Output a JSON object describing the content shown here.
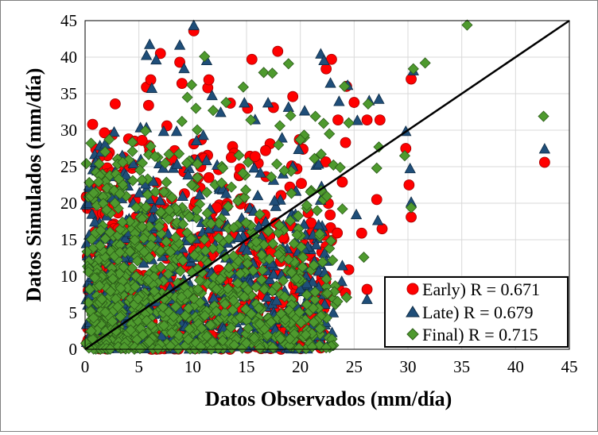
{
  "chart_data": {
    "type": "scatter",
    "title": "",
    "xlabel": "Datos Observados (mm/día)",
    "ylabel": "Datos Simulados (mm/día)",
    "xlim": [
      0,
      45
    ],
    "ylim": [
      0,
      45
    ],
    "x_ticks": [
      "0",
      "5",
      "10",
      "15",
      "20",
      "25",
      "30",
      "35",
      "40",
      "45"
    ],
    "y_ticks": [
      "0",
      "5",
      "10",
      "15",
      "20",
      "25",
      "30",
      "35",
      "40",
      "45"
    ],
    "grid": true,
    "legend_position": "bottom-right",
    "reference_line": {
      "label": "1:1",
      "from": [
        0,
        0
      ],
      "to": [
        45,
        45
      ],
      "color": "#000000"
    },
    "series": [
      {
        "name": "Early) R = 0.671",
        "marker": "circle",
        "color": "#ff0000",
        "points": [
          [
            0.2,
            19.3
          ],
          [
            0.5,
            19.6
          ],
          [
            1.0,
            27.4
          ],
          [
            1.1,
            22.1
          ],
          [
            2.0,
            24.0
          ],
          [
            2.5,
            24.2
          ],
          [
            2.7,
            21.7
          ],
          [
            2.8,
            33.6
          ],
          [
            3.4,
            22.5
          ],
          [
            3.6,
            25.7
          ],
          [
            4.6,
            28.5
          ],
          [
            5.3,
            28.6
          ],
          [
            5.7,
            35.9
          ],
          [
            5.9,
            33.4
          ],
          [
            6.1,
            36.9
          ],
          [
            7.0,
            40.5
          ],
          [
            7.6,
            30.6
          ],
          [
            8.1,
            26.0
          ],
          [
            8.8,
            39.3
          ],
          [
            9.0,
            36.4
          ],
          [
            10.1,
            43.6
          ],
          [
            10.8,
            28.7
          ],
          [
            11.4,
            35.8
          ],
          [
            11.5,
            36.9
          ],
          [
            13.5,
            33.7
          ],
          [
            15.1,
            33.0
          ],
          [
            15.5,
            39.7
          ],
          [
            17.5,
            33.1
          ],
          [
            17.9,
            40.8
          ],
          [
            19.3,
            34.6
          ],
          [
            22.4,
            38.4
          ],
          [
            22.9,
            39.7
          ],
          [
            23.5,
            31.4
          ],
          [
            23.9,
            22.9
          ],
          [
            24.2,
            28.3
          ],
          [
            24.3,
            36.0
          ],
          [
            25.0,
            33.8
          ],
          [
            26.2,
            31.4
          ],
          [
            27.4,
            31.4
          ],
          [
            29.8,
            27.5
          ],
          [
            30.1,
            22.5
          ],
          [
            30.3,
            18.1
          ],
          [
            30.3,
            37.0
          ],
          [
            42.7,
            25.6
          ],
          [
            25.7,
            15.9
          ],
          [
            27.6,
            16.5
          ],
          [
            27.1,
            20.5
          ],
          [
            24.5,
            10.9
          ],
          [
            26.2,
            8.2
          ],
          [
            24.2,
            7.7
          ],
          [
            22.0,
            13.3
          ],
          [
            21.0,
            17.3
          ],
          [
            20.1,
            22.7
          ],
          [
            19.2,
            25.1
          ],
          [
            18.4,
            15.3
          ],
          [
            16.7,
            18.4
          ],
          [
            15.8,
            26.4
          ],
          [
            14.9,
            12.1
          ],
          [
            13.2,
            19.6
          ],
          [
            12.4,
            24.6
          ]
        ]
      },
      {
        "name": "Late) R = 0.679",
        "marker": "triangle",
        "color": "#1f4e79",
        "points": [
          [
            0.3,
            11.9
          ],
          [
            0.9,
            17.4
          ],
          [
            1.0,
            25.6
          ],
          [
            2.5,
            20.7
          ],
          [
            2.7,
            29.7
          ],
          [
            3.8,
            23.8
          ],
          [
            5.7,
            40.2
          ],
          [
            5.7,
            30.3
          ],
          [
            6.0,
            41.7
          ],
          [
            6.2,
            35.7
          ],
          [
            6.6,
            39.6
          ],
          [
            7.3,
            29.8
          ],
          [
            8.5,
            29.8
          ],
          [
            8.8,
            41.6
          ],
          [
            9.2,
            38.4
          ],
          [
            10.1,
            44.3
          ],
          [
            11.3,
            39.5
          ],
          [
            11.8,
            34.7
          ],
          [
            12.6,
            32.4
          ],
          [
            14.8,
            33.7
          ],
          [
            15.8,
            31.4
          ],
          [
            17.0,
            33.7
          ],
          [
            18.3,
            28.9
          ],
          [
            18.9,
            33.1
          ],
          [
            19.3,
            25.0
          ],
          [
            20.4,
            32.6
          ],
          [
            21.9,
            40.4
          ],
          [
            22.2,
            39.5
          ],
          [
            22.8,
            36.4
          ],
          [
            23.6,
            33.9
          ],
          [
            24.4,
            36.1
          ],
          [
            25.3,
            31.3
          ],
          [
            26.4,
            34.0
          ],
          [
            27.3,
            34.2
          ],
          [
            29.8,
            29.8
          ],
          [
            30.2,
            24.7
          ],
          [
            30.3,
            20.1
          ],
          [
            30.5,
            38.1
          ],
          [
            42.7,
            27.4
          ],
          [
            27.2,
            17.6
          ],
          [
            26.2,
            6.8
          ],
          [
            25.2,
            18.4
          ],
          [
            23.9,
            11.4
          ],
          [
            22.3,
            1.8
          ],
          [
            20.5,
            6.4
          ],
          [
            19.6,
            14.8
          ],
          [
            17.6,
            20.3
          ],
          [
            16.3,
            24.1
          ],
          [
            14.4,
            11.6
          ],
          [
            13.1,
            21.3
          ]
        ]
      },
      {
        "name": "Final) R = 0.715",
        "marker": "diamond",
        "color": "#4e9a2e",
        "points": [
          [
            0.3,
            10.6
          ],
          [
            0.8,
            21.4
          ],
          [
            1.4,
            14.2
          ],
          [
            2.0,
            19.1
          ],
          [
            3.5,
            25.6
          ],
          [
            4.4,
            27.1
          ],
          [
            5.6,
            29.9
          ],
          [
            6.1,
            27.8
          ],
          [
            6.5,
            26.4
          ],
          [
            7.8,
            26.7
          ],
          [
            9.0,
            31.2
          ],
          [
            9.5,
            34.5
          ],
          [
            9.9,
            36.2
          ],
          [
            10.3,
            33.0
          ],
          [
            11.1,
            40.1
          ],
          [
            11.9,
            32.7
          ],
          [
            13.1,
            33.8
          ],
          [
            14.7,
            35.9
          ],
          [
            15.4,
            31.4
          ],
          [
            16.6,
            37.9
          ],
          [
            17.4,
            37.8
          ],
          [
            18.1,
            30.6
          ],
          [
            18.9,
            39.1
          ],
          [
            19.1,
            32.0
          ],
          [
            20.0,
            28.7
          ],
          [
            21.4,
            31.9
          ],
          [
            22.7,
            29.5
          ],
          [
            23.7,
            24.9
          ],
          [
            24.1,
            36.0
          ],
          [
            24.5,
            31.0
          ],
          [
            26.3,
            33.6
          ],
          [
            27.3,
            27.7
          ],
          [
            29.7,
            26.5
          ],
          [
            30.5,
            38.4
          ],
          [
            31.6,
            39.2
          ],
          [
            35.5,
            44.4
          ],
          [
            42.6,
            31.9
          ],
          [
            30.3,
            19.4
          ],
          [
            27.1,
            24.8
          ],
          [
            25.9,
            12.6
          ],
          [
            24.3,
            7.1
          ],
          [
            23.0,
            12.2
          ],
          [
            21.8,
            15.8
          ],
          [
            20.6,
            19.7
          ],
          [
            18.9,
            12.3
          ],
          [
            17.3,
            23.6
          ],
          [
            15.9,
            14.7
          ],
          [
            14.2,
            20.3
          ],
          [
            12.8,
            24.8
          ],
          [
            11.7,
            17.2
          ]
        ]
      }
    ]
  }
}
